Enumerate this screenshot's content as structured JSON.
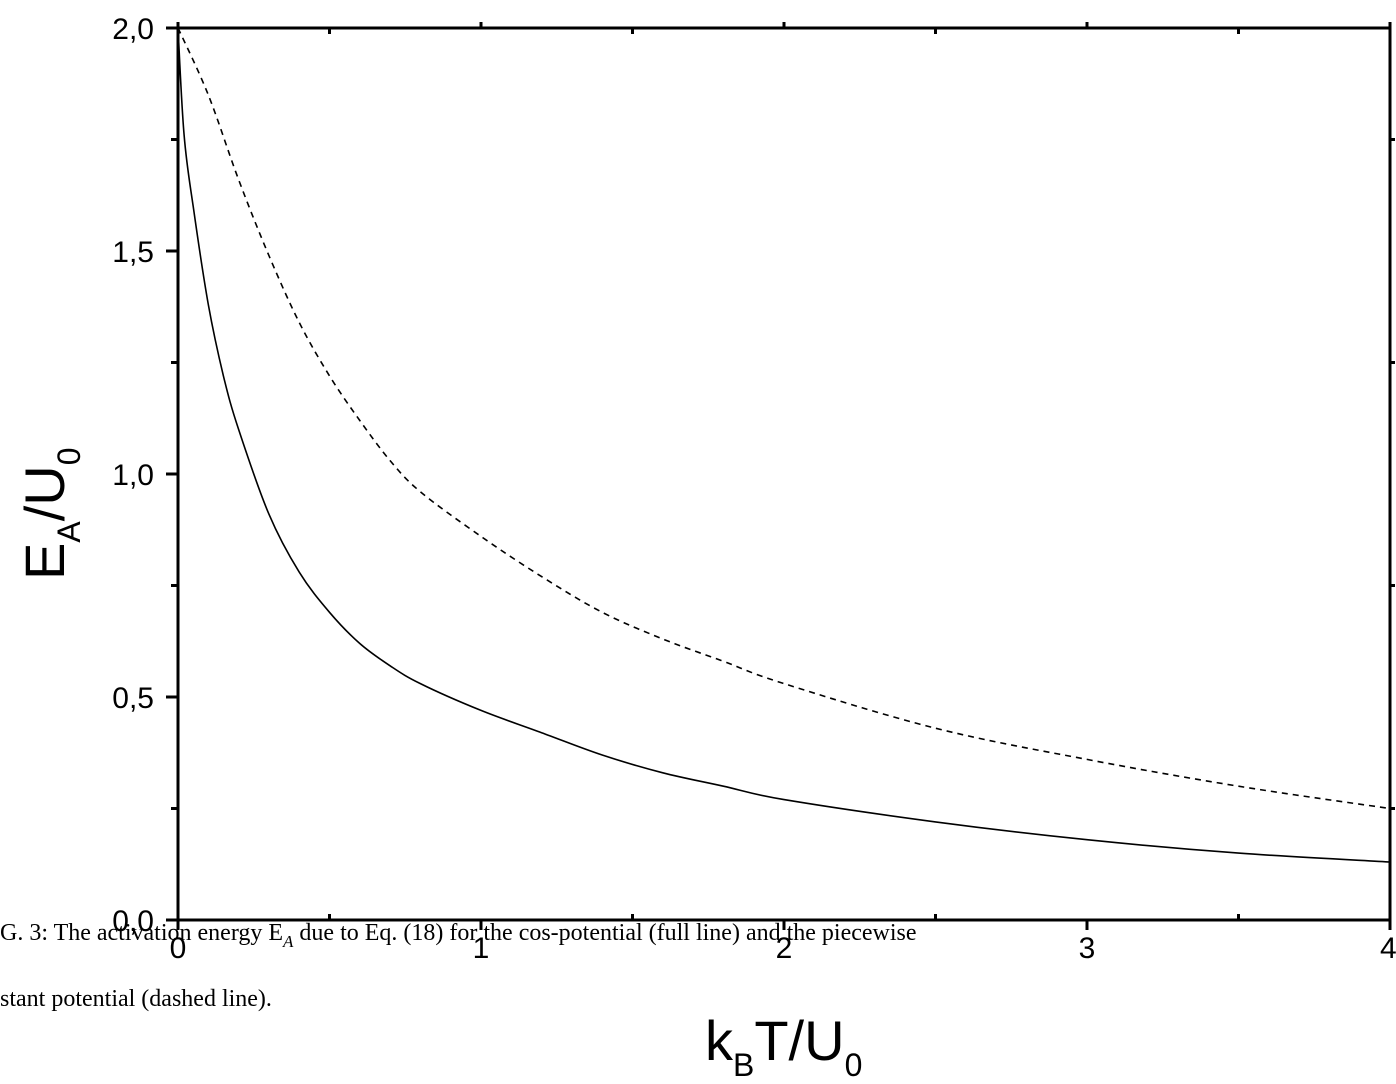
{
  "chart_data": {
    "type": "line",
    "xlabel": {
      "main": "k",
      "sub1": "B",
      "mid": "T/U",
      "sub2": "0"
    },
    "ylabel": {
      "main": "E",
      "sub1": "A",
      "mid": "/U",
      "sub2": "0"
    },
    "xlim": [
      0,
      4
    ],
    "ylim": [
      0,
      2
    ],
    "x_ticks": [
      0,
      1,
      2,
      3,
      4
    ],
    "x_tick_labels": [
      "0",
      "1",
      "2",
      "3",
      "4"
    ],
    "y_ticks": [
      0,
      0.5,
      1,
      1.5,
      2
    ],
    "y_tick_labels": [
      "0,0",
      "0,5",
      "1,0",
      "1,5",
      "2,0"
    ],
    "x_minor_step": 0.5,
    "y_minor_step": 0.25,
    "grid": false,
    "series": [
      {
        "style": "solid",
        "x": [
          0,
          0.02,
          0.05,
          0.1,
          0.15,
          0.2,
          0.3,
          0.4,
          0.5,
          0.6,
          0.7,
          0.8,
          1.0,
          1.2,
          1.4,
          1.6,
          1.8,
          2.0,
          2.5,
          3.0,
          3.5,
          4.0
        ],
        "y": [
          2.0,
          1.76,
          1.6,
          1.38,
          1.22,
          1.1,
          0.91,
          0.78,
          0.69,
          0.62,
          0.57,
          0.53,
          0.47,
          0.42,
          0.37,
          0.33,
          0.3,
          0.27,
          0.22,
          0.18,
          0.15,
          0.13
        ]
      },
      {
        "style": "dashed",
        "x": [
          0,
          0.1,
          0.2,
          0.3,
          0.4,
          0.5,
          0.6,
          0.7,
          0.8,
          1.0,
          1.2,
          1.4,
          1.6,
          1.8,
          2.0,
          2.5,
          3.0,
          3.5,
          4.0
        ],
        "y": [
          2.0,
          1.85,
          1.66,
          1.49,
          1.34,
          1.22,
          1.12,
          1.03,
          0.96,
          0.86,
          0.77,
          0.69,
          0.63,
          0.58,
          0.53,
          0.43,
          0.36,
          0.3,
          0.25
        ]
      }
    ]
  },
  "caption": {
    "line1": "G. 3: The activation energy E",
    "line1_sub": "A",
    "line1_rest": " due to Eq. (18) for the cos-potential (full line) and the piecewise",
    "line2": "stant potential (dashed line)."
  }
}
